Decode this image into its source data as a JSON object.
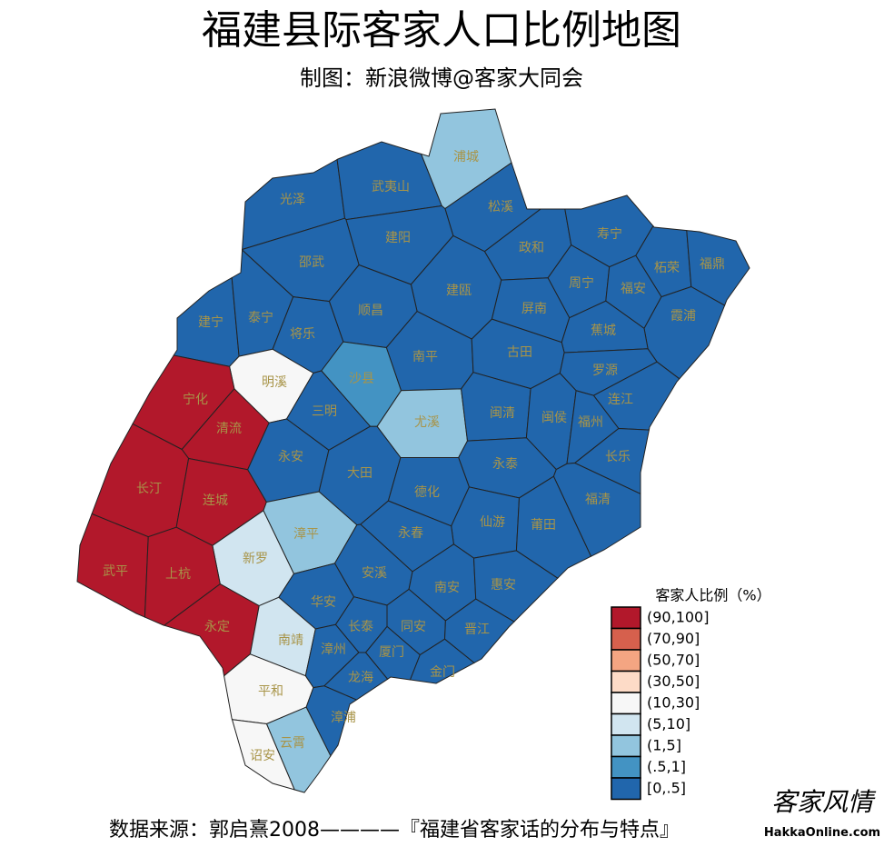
{
  "header": {
    "title": "福建县际客家人口比例地图",
    "subtitle": "制图：新浪微博@客家大同会"
  },
  "legend": {
    "title": "客家人比例（%）",
    "items": [
      {
        "label": "(90,100]",
        "color": "#b2182b"
      },
      {
        "label": "(70,90]",
        "color": "#d6604d"
      },
      {
        "label": "(50,70]",
        "color": "#f4a582"
      },
      {
        "label": "(30,50]",
        "color": "#fddbc7"
      },
      {
        "label": "(10,30]",
        "color": "#f7f7f7"
      },
      {
        "label": "(5,10]",
        "color": "#d1e5f0"
      },
      {
        "label": "(1,5]",
        "color": "#92c5de"
      },
      {
        "label": "(.5,1]",
        "color": "#4393c3"
      },
      {
        "label": "[0,.5]",
        "color": "#2166ac"
      }
    ]
  },
  "counties": [
    {
      "name": "浦城",
      "category": "(1,5]"
    },
    {
      "name": "光泽",
      "category": "[0,.5]"
    },
    {
      "name": "武夷山",
      "category": "[0,.5]"
    },
    {
      "name": "松溪",
      "category": "[0,.5]"
    },
    {
      "name": "建阳",
      "category": "[0,.5]"
    },
    {
      "name": "政和",
      "category": "[0,.5]"
    },
    {
      "name": "寿宁",
      "category": "[0,.5]"
    },
    {
      "name": "柘荣",
      "category": "[0,.5]"
    },
    {
      "name": "福鼎",
      "category": "[0,.5]"
    },
    {
      "name": "邵武",
      "category": "[0,.5]"
    },
    {
      "name": "建瓯",
      "category": "[0,.5]"
    },
    {
      "name": "周宁",
      "category": "[0,.5]"
    },
    {
      "name": "福安",
      "category": "[0,.5]"
    },
    {
      "name": "霞浦",
      "category": "[0,.5]"
    },
    {
      "name": "建宁",
      "category": "[0,.5]"
    },
    {
      "name": "泰宁",
      "category": "[0,.5]"
    },
    {
      "name": "顺昌",
      "category": "[0,.5]"
    },
    {
      "name": "屏南",
      "category": "[0,.5]"
    },
    {
      "name": "将乐",
      "category": "[0,.5]"
    },
    {
      "name": "蕉城",
      "category": "[0,.5]"
    },
    {
      "name": "南平",
      "category": "[0,.5]"
    },
    {
      "name": "古田",
      "category": "[0,.5]"
    },
    {
      "name": "罗源",
      "category": "[0,.5]"
    },
    {
      "name": "明溪",
      "category": "(10,30]"
    },
    {
      "name": "沙县",
      "category": "(.5,1]"
    },
    {
      "name": "宁化",
      "category": "(90,100]"
    },
    {
      "name": "连江",
      "category": "[0,.5]"
    },
    {
      "name": "三明",
      "category": "[0,.5]"
    },
    {
      "name": "尤溪",
      "category": "(1,5]"
    },
    {
      "name": "闽清",
      "category": "[0,.5]"
    },
    {
      "name": "闽侯",
      "category": "[0,.5]"
    },
    {
      "name": "福州",
      "category": "[0,.5]"
    },
    {
      "name": "清流",
      "category": "(90,100]"
    },
    {
      "name": "永安",
      "category": "[0,.5]"
    },
    {
      "name": "长乐",
      "category": "[0,.5]"
    },
    {
      "name": "大田",
      "category": "[0,.5]"
    },
    {
      "name": "永泰",
      "category": "[0,.5]"
    },
    {
      "name": "长汀",
      "category": "(90,100]"
    },
    {
      "name": "连城",
      "category": "(90,100]"
    },
    {
      "name": "德化",
      "category": "[0,.5]"
    },
    {
      "name": "福清",
      "category": "[0,.5]"
    },
    {
      "name": "漳平",
      "category": "(1,5]"
    },
    {
      "name": "仙游",
      "category": "[0,.5]"
    },
    {
      "name": "莆田",
      "category": "[0,.5]"
    },
    {
      "name": "永春",
      "category": "[0,.5]"
    },
    {
      "name": "新罗",
      "category": "(5,10]"
    },
    {
      "name": "武平",
      "category": "(90,100]"
    },
    {
      "name": "上杭",
      "category": "(90,100]"
    },
    {
      "name": "安溪",
      "category": "[0,.5]"
    },
    {
      "name": "南安",
      "category": "[0,.5]"
    },
    {
      "name": "惠安",
      "category": "[0,.5]"
    },
    {
      "name": "华安",
      "category": "[0,.5]"
    },
    {
      "name": "永定",
      "category": "(90,100]"
    },
    {
      "name": "长泰",
      "category": "[0,.5]"
    },
    {
      "name": "同安",
      "category": "[0,.5]"
    },
    {
      "name": "晋江",
      "category": "[0,.5]"
    },
    {
      "name": "南靖",
      "category": "(5,10]"
    },
    {
      "name": "漳州",
      "category": "[0,.5]"
    },
    {
      "name": "厦门",
      "category": "[0,.5]"
    },
    {
      "name": "金门",
      "category": "[0,.5]"
    },
    {
      "name": "龙海",
      "category": "[0,.5]"
    },
    {
      "name": "平和",
      "category": "(10,30]"
    },
    {
      "name": "漳浦",
      "category": "[0,.5]"
    },
    {
      "name": "云霄",
      "category": "(1,5]"
    },
    {
      "name": "诏安",
      "category": "(10,30]"
    }
  ],
  "footer": {
    "source": "数据来源：郭启熹2008————『福建省客家话的分布与特点』",
    "watermark": "客家风情",
    "site": "HakkaOnline.com"
  }
}
